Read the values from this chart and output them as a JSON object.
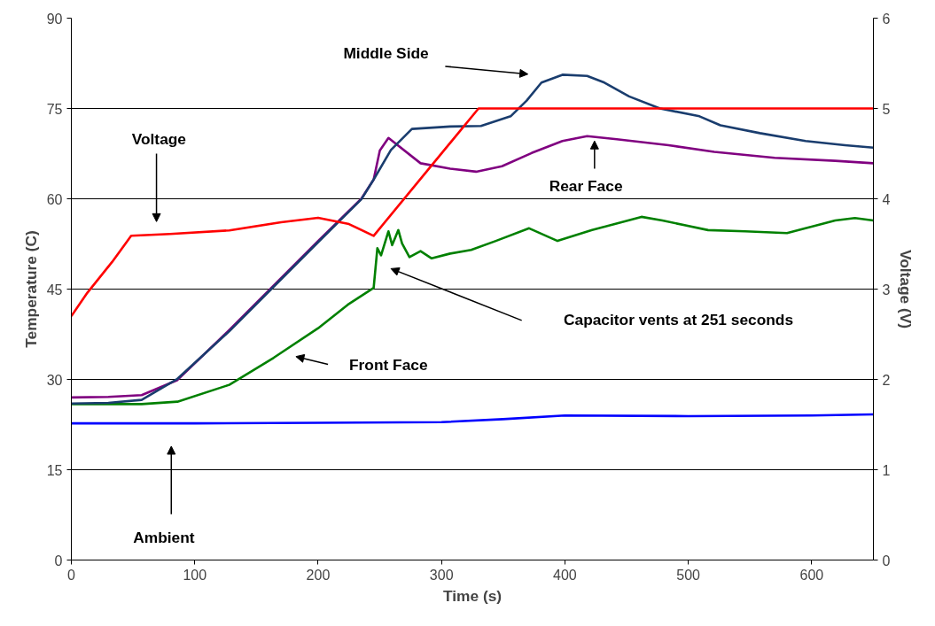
{
  "chart_data": {
    "type": "line",
    "xlabel": "Time (s)",
    "ylabel": "Temperature (C)",
    "y2label": "Voltage (V)",
    "xlim": [
      0,
      650
    ],
    "xticks": [
      0,
      100,
      200,
      300,
      400,
      500,
      600
    ],
    "ylim": [
      0,
      90
    ],
    "yticks": [
      0,
      15,
      30,
      45,
      60,
      75,
      90
    ],
    "y2lim": [
      0,
      6
    ],
    "y2ticks": [
      0,
      1,
      2,
      3,
      4,
      5,
      6
    ],
    "grid": "y",
    "marker": "none",
    "line_style": "solid",
    "series": [
      {
        "color": "#0000ff",
        "x": [
          0,
          100,
          200,
          300,
          350,
          400,
          500,
          600,
          650
        ],
        "values": [
          22.7,
          22.7,
          22.8,
          22.9,
          23.4,
          24.0,
          23.9,
          24.0,
          24.2
        ]
      },
      {
        "color": "#008000",
        "x": [
          0,
          57,
          86,
          128,
          164,
          200,
          224,
          245,
          248,
          251,
          257,
          260,
          265,
          268,
          274,
          283,
          292,
          307,
          324,
          344,
          371,
          394,
          422,
          462,
          479,
          516,
          546,
          580,
          595,
          619,
          635,
          650
        ],
        "values": [
          25.9,
          25.9,
          26.3,
          29.1,
          33.6,
          38.5,
          42.4,
          45.2,
          51.8,
          50.6,
          54.6,
          52.3,
          54.8,
          52.6,
          50.3,
          51.3,
          50.1,
          50.9,
          51.5,
          53.0,
          55.1,
          53.0,
          54.8,
          57.0,
          56.4,
          54.8,
          54.6,
          54.3,
          55.1,
          56.4,
          56.8,
          56.4
        ]
      },
      {
        "color": "#800080",
        "x": [
          0,
          30,
          57,
          86,
          128,
          164,
          200,
          235,
          245,
          250,
          257,
          283,
          307,
          328,
          349,
          373,
          398,
          418,
          442,
          484,
          521,
          570,
          619,
          650
        ],
        "values": [
          27.0,
          27.1,
          27.4,
          29.9,
          38.2,
          45.6,
          53.0,
          60.0,
          63.2,
          68.0,
          70.1,
          65.9,
          65.0,
          64.5,
          65.4,
          67.6,
          69.6,
          70.4,
          69.9,
          68.9,
          67.8,
          66.8,
          66.3,
          65.9
        ]
      },
      {
        "color": "#1a3d6e",
        "x": [
          0,
          30,
          57,
          86,
          128,
          164,
          200,
          235,
          245,
          259,
          276,
          307,
          332,
          356,
          369,
          381,
          398,
          418,
          432,
          452,
          477,
          509,
          526,
          558,
          595,
          627,
          650
        ],
        "values": [
          26.0,
          26.1,
          26.6,
          30.1,
          38.0,
          45.4,
          52.8,
          59.9,
          63.2,
          68.1,
          71.6,
          72.0,
          72.1,
          73.7,
          76.3,
          79.3,
          80.6,
          80.4,
          79.3,
          77.0,
          75.0,
          73.7,
          72.2,
          70.9,
          69.6,
          68.9,
          68.5
        ]
      },
      {
        "color": "#ff0000",
        "axis": "y2",
        "x": [
          0,
          13,
          33,
          48.5,
          80,
          128,
          170,
          200,
          225,
          245,
          330,
          650
        ],
        "values": [
          2.7,
          2.96,
          3.3,
          3.59,
          3.61,
          3.65,
          3.74,
          3.79,
          3.72,
          3.59,
          5.0,
          5.0
        ]
      }
    ],
    "annotations": [
      "Middle Side",
      "Voltage",
      {
        "text": "Rear Face",
        "x": 424,
        "y": 69.6
      },
      "Capacitor vents at 251 seconds",
      "Front Face",
      "Ambient"
    ]
  }
}
